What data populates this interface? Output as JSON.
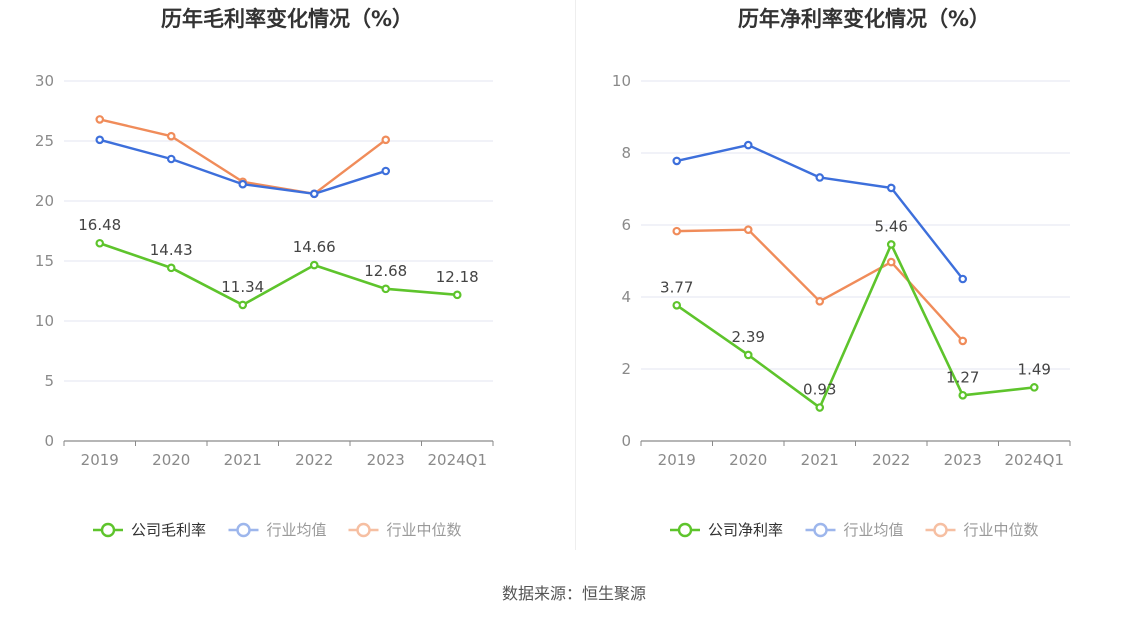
{
  "chart_data": [
    {
      "type": "line",
      "title": "历年毛利率变化情况（%）",
      "categories": [
        "2019",
        "2020",
        "2021",
        "2022",
        "2023",
        "2024Q1"
      ],
      "ylim": [
        0,
        30
      ],
      "yticks": [
        0,
        5,
        10,
        15,
        20,
        25,
        30
      ],
      "grid": true,
      "legend_position": "bottom",
      "series": [
        {
          "name": "公司毛利率",
          "color": "#5ec42c",
          "values": [
            16.48,
            14.43,
            11.34,
            14.66,
            12.68,
            12.18
          ],
          "labels": [
            "16.48",
            "14.43",
            "11.34",
            "14.66",
            "12.68",
            "12.18"
          ]
        },
        {
          "name": "行业均值",
          "color": "#3d6fdb",
          "values": [
            25.1,
            23.5,
            21.4,
            20.6,
            22.5,
            null
          ]
        },
        {
          "name": "行业中位数",
          "color": "#f08c5a",
          "values": [
            26.8,
            25.4,
            21.6,
            20.6,
            25.1,
            null
          ]
        }
      ]
    },
    {
      "type": "line",
      "title": "历年净利率变化情况（%）",
      "categories": [
        "2019",
        "2020",
        "2021",
        "2022",
        "2023",
        "2024Q1"
      ],
      "ylim": [
        0,
        10
      ],
      "yticks": [
        0,
        2,
        4,
        6,
        8,
        10
      ],
      "grid": true,
      "legend_position": "bottom",
      "series": [
        {
          "name": "公司净利率",
          "color": "#5ec42c",
          "values": [
            3.77,
            2.39,
            0.93,
            5.46,
            1.27,
            1.49
          ],
          "labels": [
            "3.77",
            "2.39",
            "0.93",
            "5.46",
            "1.27",
            "1.49"
          ]
        },
        {
          "name": "行业均值",
          "color": "#3d6fdb",
          "values": [
            7.78,
            8.22,
            7.32,
            7.03,
            4.5,
            null
          ]
        },
        {
          "name": "行业中位数",
          "color": "#f08c5a",
          "values": [
            5.83,
            5.87,
            3.88,
            4.97,
            2.78,
            null
          ]
        }
      ]
    }
  ],
  "source": "数据来源：恒生聚源"
}
